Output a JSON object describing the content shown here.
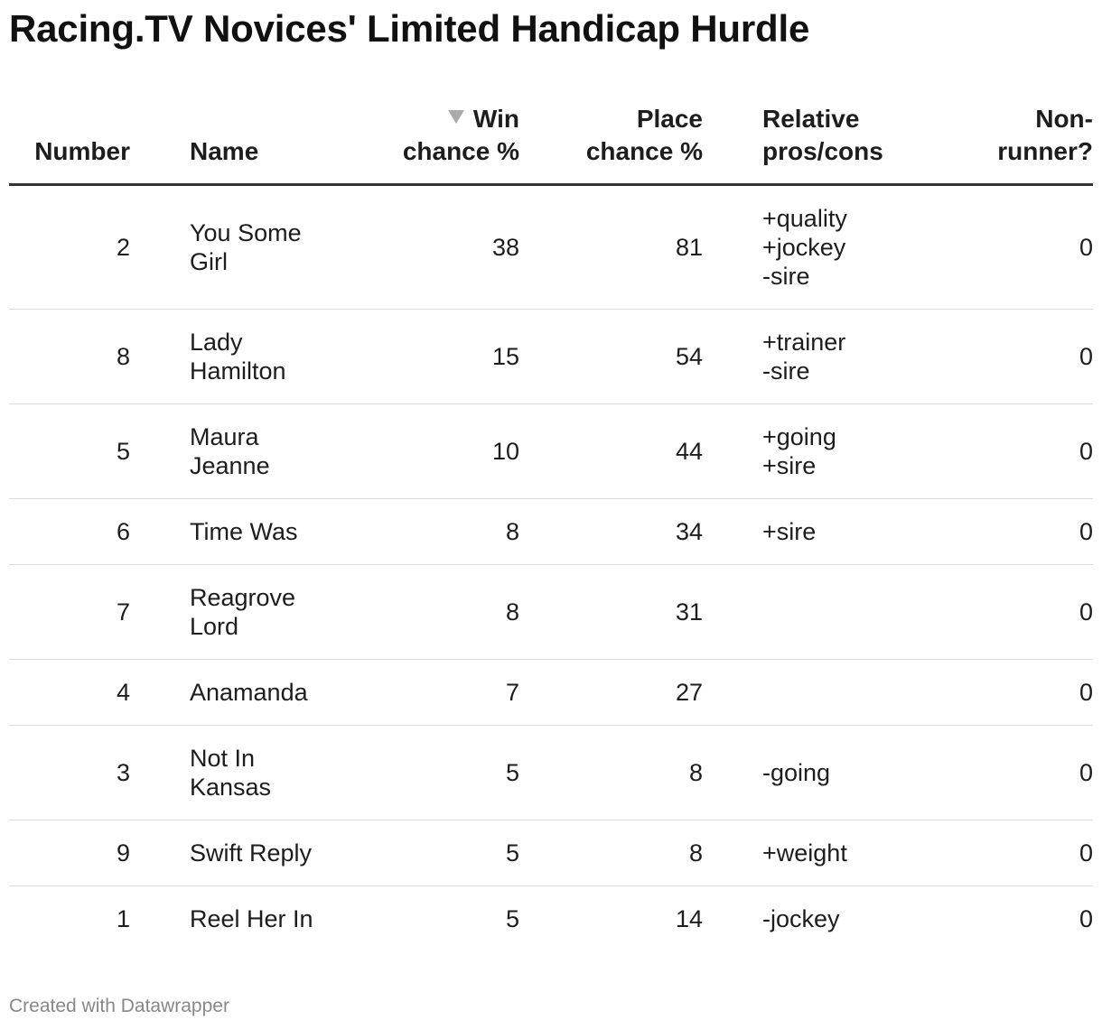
{
  "title": "Racing.TV Novices' Limited Handicap Hurdle",
  "columns": {
    "number": "Number",
    "name": "Name",
    "win_line1": "Win",
    "win_line2": "chance %",
    "place_line1": "Place",
    "place_line2": "chance %",
    "pros_line1": "Relative",
    "pros_line2": "pros/cons",
    "nonrunner_line1": "Non-",
    "nonrunner_line2": "runner?"
  },
  "sort_indicator": "sort-descending-icon",
  "chart_data": {
    "type": "table",
    "title": "Racing.TV Novices' Limited Handicap Hurdle",
    "sorted_by": "Win chance %",
    "sort_direction": "descending",
    "rows": [
      {
        "number": "2",
        "name": "You Some Girl",
        "win": "38",
        "place": "81",
        "pros": [
          "+quality",
          "+jockey",
          "-sire"
        ],
        "nonrunner": "0"
      },
      {
        "number": "8",
        "name": "Lady Hamilton",
        "win": "15",
        "place": "54",
        "pros": [
          "+trainer",
          "-sire"
        ],
        "nonrunner": "0"
      },
      {
        "number": "5",
        "name": "Maura Jeanne",
        "win": "10",
        "place": "44",
        "pros": [
          "+going",
          "+sire"
        ],
        "nonrunner": "0"
      },
      {
        "number": "6",
        "name": "Time Was",
        "win": "8",
        "place": "34",
        "pros": [
          "+sire"
        ],
        "nonrunner": "0"
      },
      {
        "number": "7",
        "name": "Reagrove Lord",
        "win": "8",
        "place": "31",
        "pros": [],
        "nonrunner": "0"
      },
      {
        "number": "4",
        "name": "Anamanda",
        "win": "7",
        "place": "27",
        "pros": [],
        "nonrunner": "0"
      },
      {
        "number": "3",
        "name": "Not In Kansas",
        "win": "5",
        "place": "8",
        "pros": [
          "-going"
        ],
        "nonrunner": "0"
      },
      {
        "number": "9",
        "name": "Swift Reply",
        "win": "5",
        "place": "8",
        "pros": [
          "+weight"
        ],
        "nonrunner": "0"
      },
      {
        "number": "1",
        "name": "Reel Her In",
        "win": "5",
        "place": "14",
        "pros": [
          "-jockey"
        ],
        "nonrunner": "0"
      }
    ]
  },
  "footer": "Created with Datawrapper"
}
